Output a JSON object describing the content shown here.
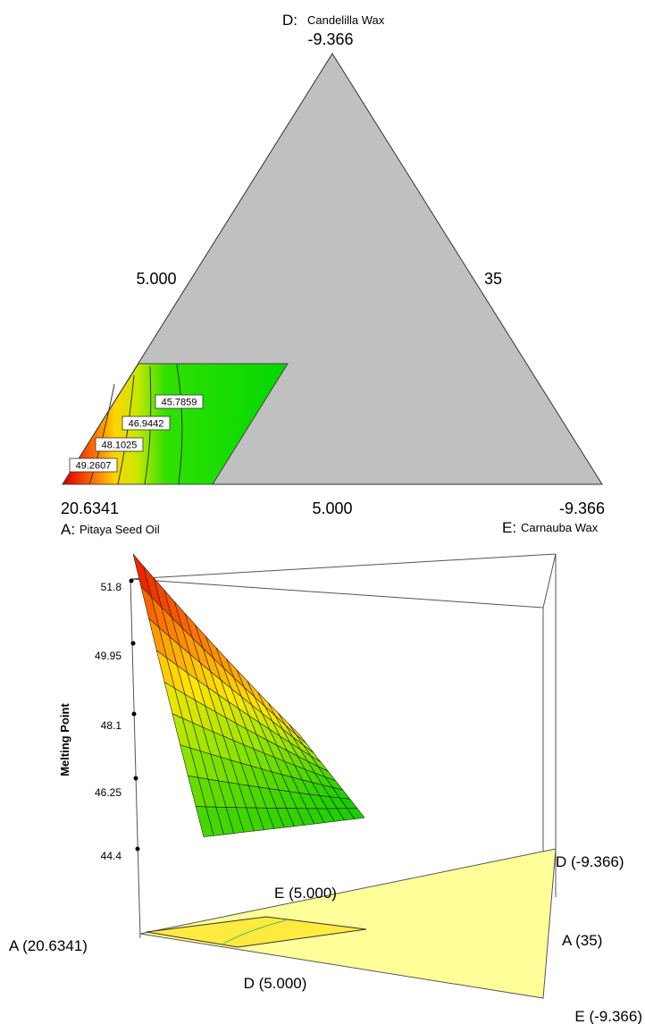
{
  "chart_data": [
    {
      "type": "ternary-contour",
      "components": [
        {
          "letter": "A:",
          "name": "Pitaya Seed Oil",
          "tick_labels": [
            "20.6341"
          ]
        },
        {
          "letter": "D:",
          "name": "Candelilla Wax",
          "tick_labels": [
            "-9.366",
            "5.000"
          ]
        },
        {
          "letter": "E:",
          "name": "Carnauba Wax",
          "tick_labels": [
            "-9.366",
            "5.000",
            "35"
          ]
        }
      ],
      "side_labels": {
        "left": "5.000",
        "right": "35",
        "bottom": "5.000"
      },
      "vertex_values": {
        "top": "-9.366",
        "bottom_left": "20.6341",
        "bottom_right": "-9.366"
      },
      "contour_levels": [
        "49.2607",
        "48.1025",
        "46.9442",
        "45.7859"
      ],
      "colors": {
        "infeasible_region": "#c0c0c0",
        "low": "#00d000",
        "high": "#e00000"
      }
    },
    {
      "type": "surface-3d",
      "zlabel": "Melting Point",
      "z_ticks": [
        "51.8",
        "49.95",
        "48.1",
        "46.25",
        "44.4"
      ],
      "zlim": [
        44.4,
        51.8
      ],
      "base_labels": {
        "a_left": "A (20.6341)",
        "d_mid": "D (5.000)",
        "e_mid": "E (5.000)",
        "d_right": "D (-9.366)",
        "a_right": "A (35)",
        "e_right": "E (-9.366)"
      },
      "surface_max": 51.8,
      "surface_min": 44.7,
      "colors": {
        "base_plane": "#ffff99",
        "high": "#e00000",
        "low": "#00c000"
      }
    }
  ]
}
